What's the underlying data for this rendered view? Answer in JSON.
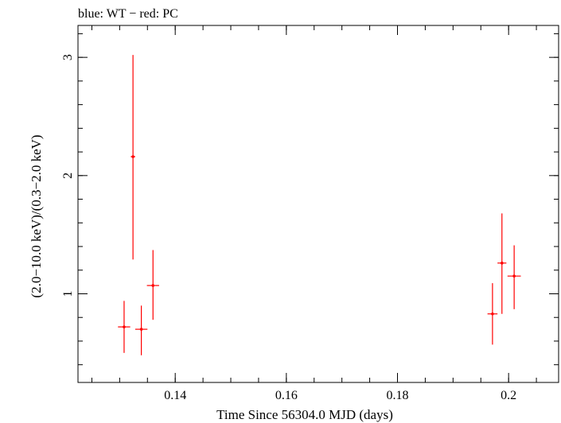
{
  "chart_data": {
    "type": "scatter",
    "title": "blue: WT − red: PC",
    "xlabel": "Time Since 56304.0 MJD (days)",
    "ylabel": "(2.0−10.0 keV)/(0.3−2.0 keV)",
    "xlim": [
      0.1225,
      0.209
    ],
    "ylim": [
      0.25,
      3.27
    ],
    "x_major_ticks": [
      0.14,
      0.16,
      0.18,
      0.2
    ],
    "x_tick_labels": [
      "0.14",
      "0.16",
      "0.18",
      "0.2"
    ],
    "x_minor_step": 0.005,
    "y_major_ticks": [
      1,
      2,
      3
    ],
    "y_tick_labels": [
      "1",
      "2",
      "3"
    ],
    "y_minor_step": 0.2,
    "series": [
      {
        "name": "PC",
        "color": "#ff0000",
        "points": [
          {
            "x": 0.1308,
            "y": 0.72,
            "xerr": 0.0011,
            "ylo": 0.5,
            "yhi": 0.94
          },
          {
            "x": 0.1324,
            "y": 2.16,
            "xerr": 0.0004,
            "ylo": 1.29,
            "yhi": 3.02
          },
          {
            "x": 0.1339,
            "y": 0.7,
            "xerr": 0.0011,
            "ylo": 0.48,
            "yhi": 0.9
          },
          {
            "x": 0.136,
            "y": 1.07,
            "xerr": 0.0011,
            "ylo": 0.78,
            "yhi": 1.37
          },
          {
            "x": 0.1971,
            "y": 0.83,
            "xerr": 0.0009,
            "ylo": 0.57,
            "yhi": 1.09
          },
          {
            "x": 0.1988,
            "y": 1.26,
            "xerr": 0.0008,
            "ylo": 0.83,
            "yhi": 1.68
          },
          {
            "x": 0.201,
            "y": 1.15,
            "xerr": 0.0012,
            "ylo": 0.87,
            "yhi": 1.41
          }
        ]
      },
      {
        "name": "WT",
        "color": "#0000ff",
        "points": []
      }
    ]
  }
}
